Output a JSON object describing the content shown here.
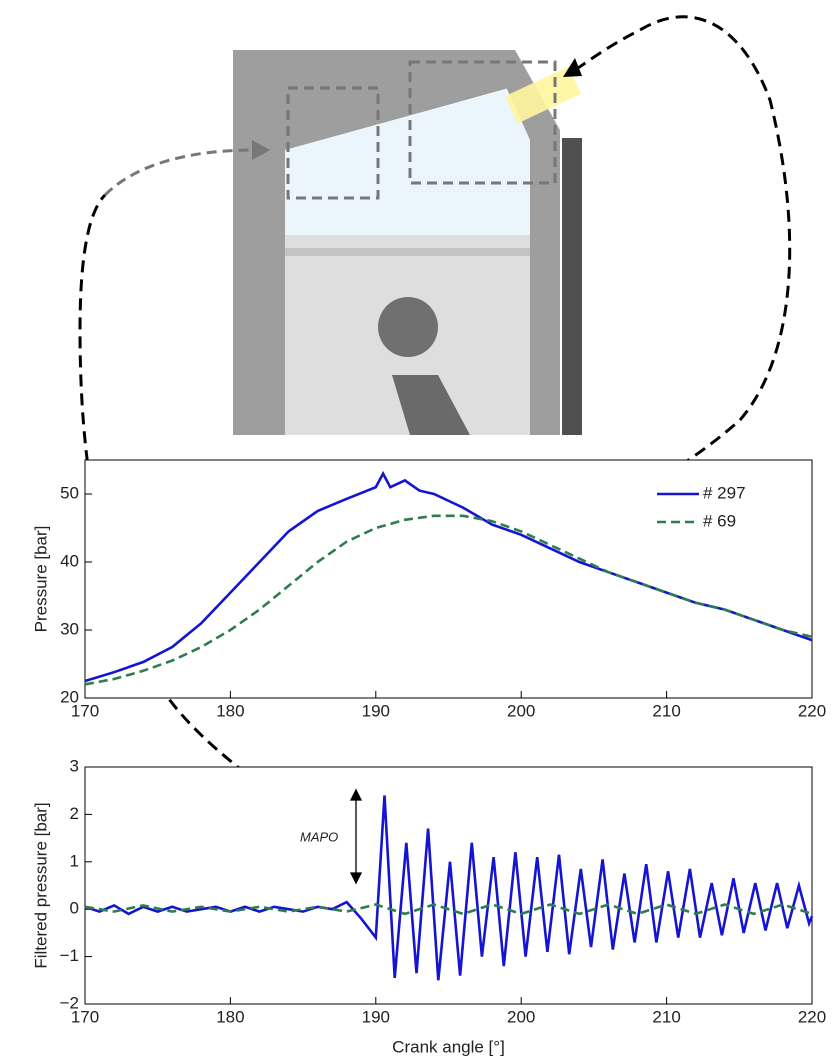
{
  "chart_data": [
    {
      "type": "line",
      "ylabel": "Pressure [bar]",
      "xlim": [
        170,
        220
      ],
      "xticks": [
        170,
        180,
        190,
        200,
        210,
        220
      ],
      "ylim": [
        20,
        55
      ],
      "yticks": [
        20,
        30,
        40,
        50
      ],
      "legend": "upper right",
      "series": [
        {
          "name": "# 297",
          "color": "#1414d2",
          "dash": false,
          "x": [
            170,
            172,
            174,
            176,
            178,
            180,
            182,
            184,
            186,
            188,
            190,
            190.5,
            191,
            192,
            193,
            194,
            196,
            198,
            200,
            202,
            204,
            206,
            208,
            210,
            212,
            214,
            216,
            218,
            220
          ],
          "values": [
            22.5,
            23.8,
            25.3,
            27.5,
            31,
            35.5,
            40,
            44.5,
            47.5,
            49.3,
            51,
            53,
            51,
            52,
            50.5,
            50,
            48,
            45.5,
            44,
            42,
            40,
            38.5,
            37,
            35.5,
            34,
            33,
            31.5,
            30,
            28.5
          ]
        },
        {
          "name": "# 69",
          "color": "#2e7d4f",
          "dash": true,
          "x": [
            170,
            172,
            174,
            176,
            178,
            180,
            182,
            184,
            186,
            188,
            190,
            192,
            194,
            196,
            198,
            200,
            202,
            204,
            206,
            208,
            210,
            212,
            214,
            216,
            218,
            220
          ],
          "values": [
            22,
            22.8,
            24,
            25.5,
            27.5,
            30,
            33,
            36.5,
            40,
            43,
            45,
            46.2,
            46.8,
            46.8,
            46,
            44.5,
            42.5,
            40.5,
            38.5,
            37,
            35.5,
            34,
            33,
            31.5,
            30,
            29
          ]
        }
      ]
    },
    {
      "type": "line",
      "ylabel": "Filtered pressure [bar]",
      "xlabel": "Crank angle [°]",
      "annotation": "MAPO",
      "xlim": [
        170,
        220
      ],
      "xticks": [
        170,
        180,
        190,
        200,
        210,
        220
      ],
      "ylim": [
        -2,
        3
      ],
      "yticks": [
        {
          "value": -2,
          "label": "−2"
        },
        {
          "value": -1,
          "label": "−1"
        },
        0,
        1,
        2,
        3
      ],
      "series": [
        {
          "color": "#1414d2",
          "dash": false,
          "x": [
            170,
            171,
            172,
            173,
            174,
            175,
            176,
            177,
            178,
            179,
            180,
            181,
            182,
            183,
            184,
            185,
            186,
            187,
            188,
            189,
            190,
            190.6,
            191.3,
            192.1,
            192.8,
            193.6,
            194.3,
            195.1,
            195.8,
            196.6,
            197.3,
            198.1,
            198.8,
            199.6,
            200.3,
            201.1,
            201.8,
            202.6,
            203.3,
            204.1,
            204.8,
            205.6,
            206.3,
            207.1,
            207.8,
            208.6,
            209.3,
            210.1,
            210.8,
            211.6,
            212.3,
            213.1,
            213.8,
            214.6,
            215.3,
            216.1,
            216.8,
            217.6,
            218.3,
            219.1,
            219.8,
            220
          ],
          "values": [
            0.05,
            -0.05,
            0.08,
            -0.1,
            0.05,
            -0.05,
            0.05,
            -0.05,
            0.0,
            0.05,
            -0.05,
            0.05,
            -0.05,
            0.05,
            0.0,
            -0.05,
            0.05,
            0.0,
            0.15,
            -0.2,
            -0.6,
            2.4,
            -1.45,
            1.4,
            -1.35,
            1.7,
            -1.5,
            1.0,
            -1.4,
            1.4,
            -1.0,
            1.1,
            -1.2,
            1.2,
            -1.0,
            1.1,
            -0.9,
            1.15,
            -0.95,
            0.85,
            -0.8,
            1.05,
            -0.85,
            0.75,
            -0.7,
            0.95,
            -0.7,
            0.8,
            -0.6,
            0.85,
            -0.6,
            0.55,
            -0.55,
            0.65,
            -0.5,
            0.55,
            -0.45,
            0.55,
            -0.4,
            0.5,
            -0.3,
            -0.15
          ]
        },
        {
          "color": "#2e7d4f",
          "dash": true,
          "x": [
            170,
            172,
            174,
            176,
            178,
            180,
            182,
            184,
            186,
            188,
            190,
            192,
            194,
            196,
            198,
            200,
            202,
            204,
            206,
            208,
            210,
            212,
            214,
            216,
            218,
            220
          ],
          "values": [
            0.05,
            -0.05,
            0.08,
            -0.05,
            0.05,
            -0.05,
            0.05,
            -0.05,
            0.05,
            -0.05,
            0.1,
            -0.1,
            0.1,
            -0.1,
            0.1,
            -0.1,
            0.1,
            -0.1,
            0.1,
            -0.1,
            0.1,
            -0.1,
            0.1,
            -0.1,
            0.1,
            -0.1
          ]
        }
      ]
    }
  ]
}
